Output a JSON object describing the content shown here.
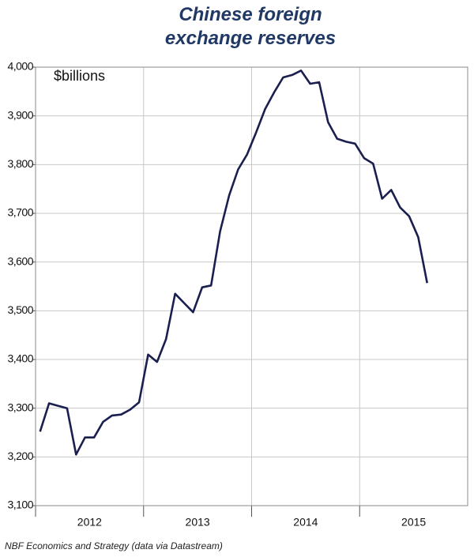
{
  "chart_data": {
    "type": "line",
    "title": "Chinese foreign exchange reserves",
    "unit_label": "$billions",
    "source": "NBF Economics  and Strategy (data via Datastream)",
    "x": [
      2012.042,
      2012.125,
      2012.208,
      2012.292,
      2012.375,
      2012.458,
      2012.542,
      2012.625,
      2012.708,
      2012.792,
      2012.875,
      2012.958,
      2013.042,
      2013.125,
      2013.208,
      2013.292,
      2013.375,
      2013.458,
      2013.542,
      2013.625,
      2013.708,
      2013.792,
      2013.875,
      2013.958,
      2014.042,
      2014.125,
      2014.208,
      2014.292,
      2014.375,
      2014.458,
      2014.542,
      2014.625,
      2014.708,
      2014.792,
      2014.875,
      2014.958,
      2015.042,
      2015.125,
      2015.208,
      2015.292,
      2015.375,
      2015.458,
      2015.542,
      2015.625
    ],
    "series": [
      {
        "name": "Chinese foreign exchange reserves",
        "color": "#1a1f4f",
        "values": [
          3252,
          3310,
          3305,
          3300,
          3205,
          3240,
          3240,
          3272,
          3285,
          3287,
          3297,
          3312,
          3410,
          3395,
          3442,
          3535,
          3516,
          3497,
          3548,
          3552,
          3663,
          3737,
          3790,
          3821,
          3866,
          3914,
          3948,
          3979,
          3984,
          3993,
          3966,
          3969,
          3887,
          3853,
          3847,
          3843,
          3813,
          3802,
          3730,
          3748,
          3712,
          3694,
          3651,
          3557
        ]
      }
    ],
    "xlim": [
      2012,
      2016
    ],
    "xticks": [
      2012,
      2013,
      2014,
      2015
    ],
    "ylim": [
      3100,
      4000
    ],
    "yticks": [
      {
        "value": 3100,
        "label": "3,100"
      },
      {
        "value": 3200,
        "label": "3,200"
      },
      {
        "value": 3300,
        "label": "3,300"
      },
      {
        "value": 3400,
        "label": "3,400"
      },
      {
        "value": 3500,
        "label": "3,500"
      },
      {
        "value": 3600,
        "label": "3,600"
      },
      {
        "value": 3700,
        "label": "3,700"
      },
      {
        "value": 3800,
        "label": "3,800"
      },
      {
        "value": 3900,
        "label": "3,900"
      },
      {
        "value": 4000,
        "label": "4,000"
      }
    ],
    "grid": true
  }
}
